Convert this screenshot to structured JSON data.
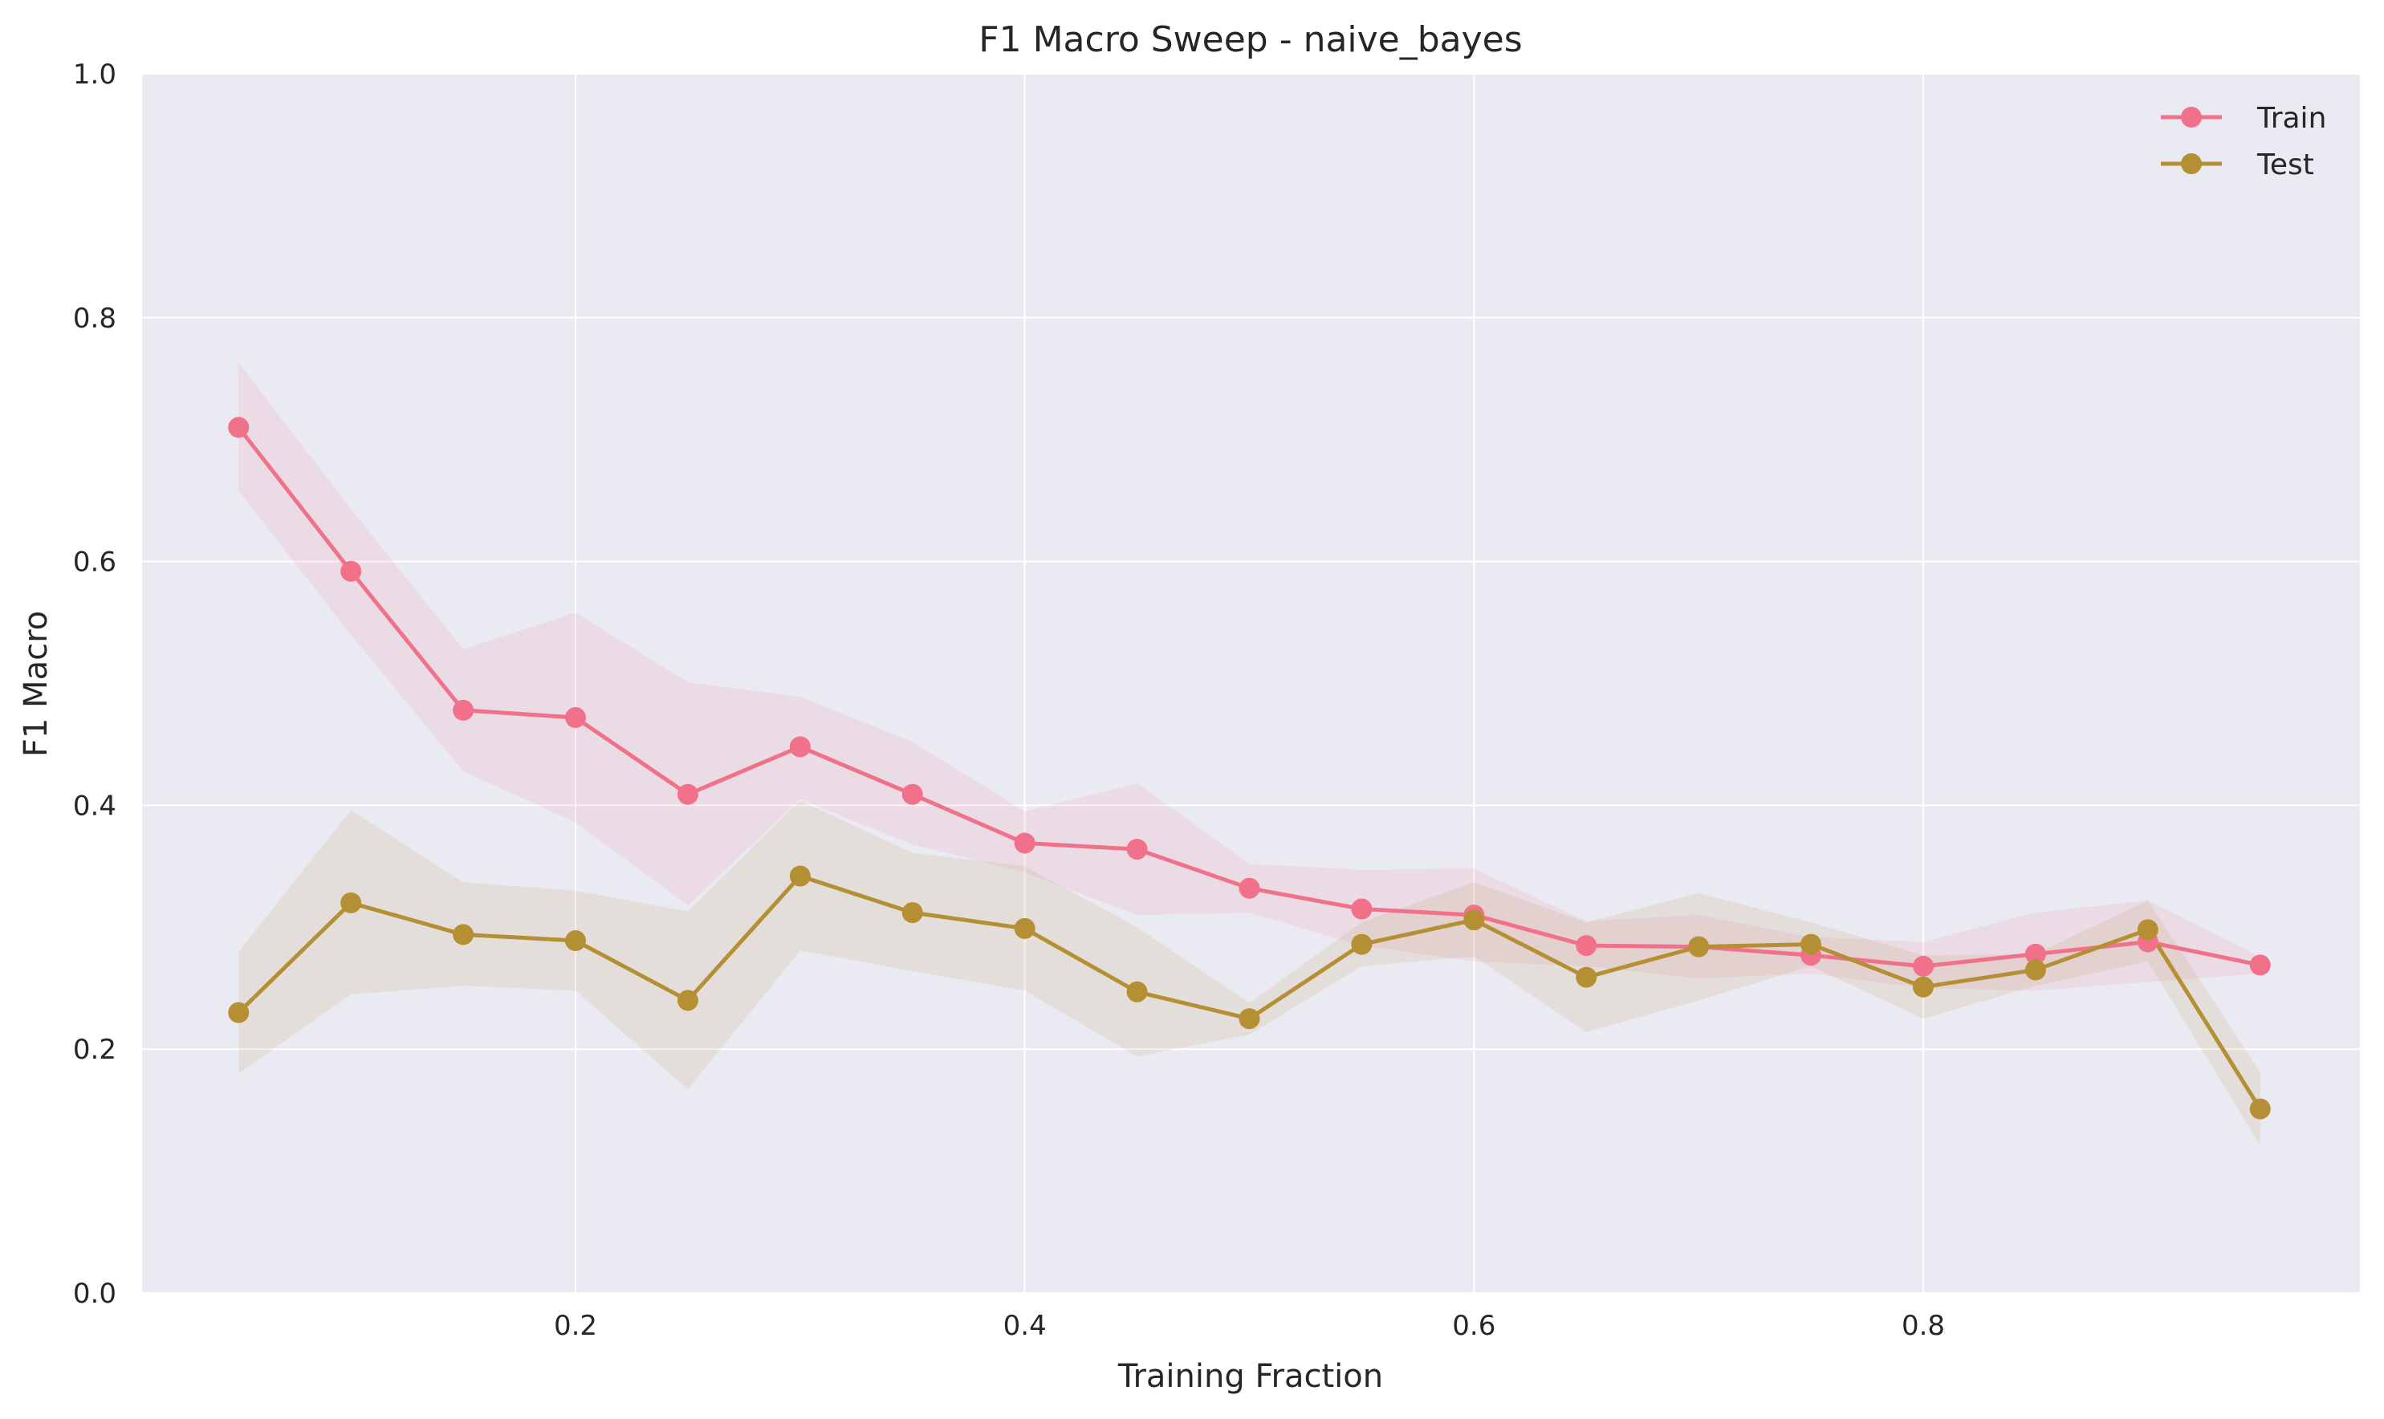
{
  "chart_data": {
    "type": "line",
    "title": "F1 Macro Sweep - naive_bayes",
    "xlabel": "Training Fraction",
    "ylabel": "F1 Macro",
    "xlim": [
      0.0,
      1.0
    ],
    "ylim": [
      0.0,
      1.0
    ],
    "x_ticks": [
      0.2,
      0.4,
      0.6,
      0.8
    ],
    "x_tick_labels": [
      "0.2",
      "0.4",
      "0.6",
      "0.8"
    ],
    "y_ticks": [
      0.0,
      0.2,
      0.4,
      0.6,
      0.8,
      1.0
    ],
    "y_tick_labels": [
      "0.0",
      "0.2",
      "0.4",
      "0.6",
      "0.8",
      "1.0"
    ],
    "grid": true,
    "legend_position": "top-right",
    "x": [
      0.05,
      0.1,
      0.15,
      0.2,
      0.25,
      0.3,
      0.35,
      0.4,
      0.45,
      0.5,
      0.55,
      0.6,
      0.65,
      0.7,
      0.75,
      0.8,
      0.85,
      0.9,
      0.95
    ],
    "series": [
      {
        "name": "Train",
        "color": "#f2718a",
        "values": [
          0.71,
          0.592,
          0.478,
          0.472,
          0.409,
          0.448,
          0.409,
          0.369,
          0.364,
          0.332,
          0.315,
          0.31,
          0.285,
          0.284,
          0.277,
          0.268,
          0.278,
          0.288,
          0.269
        ],
        "lower": [
          0.658,
          0.54,
          0.428,
          0.386,
          0.318,
          0.405,
          0.368,
          0.345,
          0.31,
          0.312,
          0.285,
          0.272,
          0.268,
          0.258,
          0.262,
          0.25,
          0.248,
          0.255,
          0.262
        ],
        "upper": [
          0.763,
          0.643,
          0.528,
          0.558,
          0.501,
          0.489,
          0.452,
          0.395,
          0.418,
          0.352,
          0.347,
          0.348,
          0.305,
          0.31,
          0.292,
          0.288,
          0.312,
          0.322,
          0.276
        ]
      },
      {
        "name": "Test",
        "color": "#b58f33",
        "values": [
          0.23,
          0.32,
          0.294,
          0.289,
          0.24,
          0.342,
          0.312,
          0.299,
          0.247,
          0.225,
          0.286,
          0.306,
          0.259,
          0.284,
          0.286,
          0.251,
          0.265,
          0.298,
          0.151
        ],
        "lower": [
          0.18,
          0.245,
          0.252,
          0.248,
          0.167,
          0.281,
          0.264,
          0.248,
          0.194,
          0.212,
          0.268,
          0.276,
          0.214,
          0.24,
          0.268,
          0.225,
          0.252,
          0.272,
          0.121
        ],
        "upper": [
          0.28,
          0.396,
          0.337,
          0.33,
          0.313,
          0.404,
          0.361,
          0.35,
          0.3,
          0.238,
          0.304,
          0.337,
          0.304,
          0.328,
          0.304,
          0.277,
          0.278,
          0.322,
          0.181
        ]
      }
    ],
    "style": {
      "plot_background": "#eaeaf2",
      "grid_color": "#ffffff"
    }
  }
}
